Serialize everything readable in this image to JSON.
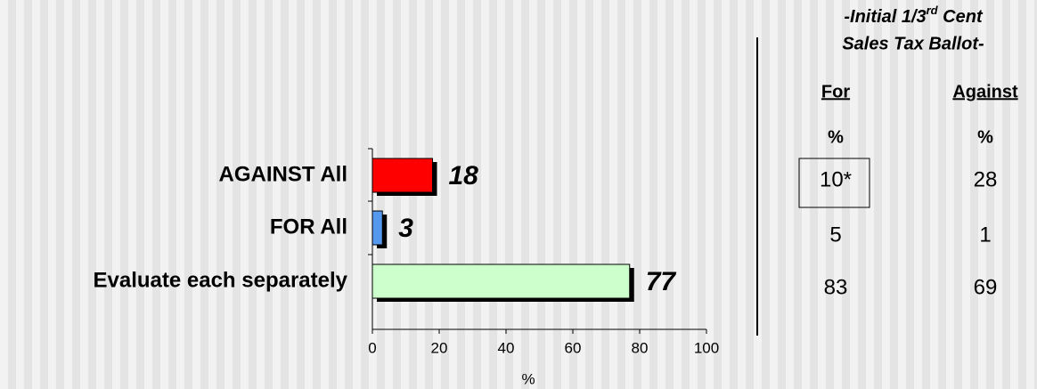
{
  "chart_data": {
    "type": "hbar",
    "categories": [
      "AGAINST All",
      "FOR All",
      "Evaluate each separately"
    ],
    "values": [
      18,
      3,
      77
    ],
    "colors": [
      "#ff0000",
      "#5599ee",
      "#ccffcc"
    ],
    "xlim": [
      0,
      100
    ],
    "xticks": [
      0,
      20,
      40,
      60,
      80,
      100
    ],
    "xlabel": "%"
  },
  "ballot_table": {
    "title_pre": "-Initial 1/3",
    "title_sup": "rd",
    "title_post": " Cent",
    "title_line2": "Sales Tax Ballot-",
    "columns": [
      {
        "name": "For",
        "unit": "%"
      },
      {
        "name": "Against",
        "unit": "%"
      }
    ],
    "rows": [
      [
        "10*",
        28
      ],
      [
        5,
        1
      ],
      [
        83,
        69
      ]
    ]
  }
}
